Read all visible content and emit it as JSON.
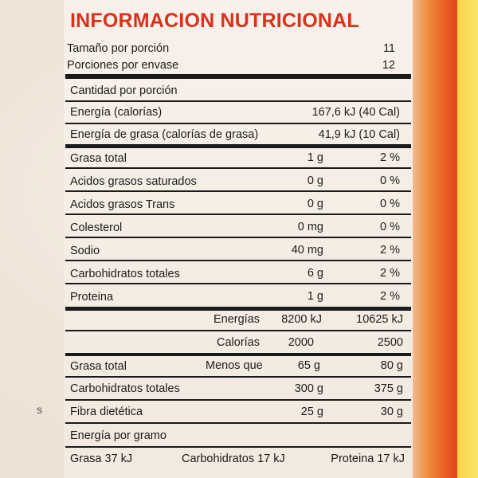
{
  "title": "INFORMACION NUTRICIONAL",
  "serving": {
    "size_label": "Tamaño  por porción",
    "size_value": "11",
    "per_pack_label": "Porciones por envase",
    "per_pack_value": "12"
  },
  "amount_label": "Cantidad por porción",
  "energy_rows": [
    {
      "label": "Energía (calorías)",
      "value": "167,6 kJ (40 Cal)"
    },
    {
      "label": "Energía de grasa (calorías de grasa)",
      "value": "41,9 kJ (10 Cal)"
    }
  ],
  "nutrients": [
    {
      "label": "Grasa total",
      "amount": "1 g",
      "pct": "2 %"
    },
    {
      "label": "Acidos grasos saturados",
      "amount": "0 g",
      "pct": "0 %"
    },
    {
      "label": "Acidos grasos Trans",
      "amount": "0 g",
      "pct": "0 %"
    },
    {
      "label": "Colesterol",
      "amount": "0 mg",
      "pct": "0 %"
    },
    {
      "label": "Sodio",
      "amount": "40 mg",
      "pct": "2 %"
    },
    {
      "label": "Carbohidratos totales",
      "amount": "6 g",
      "pct": "2 %"
    },
    {
      "label": "Proteina",
      "amount": "1 g",
      "pct": "2 %"
    }
  ],
  "reference": {
    "energias": {
      "label": "Energías",
      "v1": "8200 kJ",
      "v2": "10625 kJ"
    },
    "calorias": {
      "label": "Calorías",
      "v1": "2000",
      "v2": "2500"
    },
    "rows": [
      {
        "label": "Grasa total",
        "qualifier": "Menos que",
        "v1": "65 g",
        "v2": "80 g"
      },
      {
        "label": "Carbohidratos totales",
        "qualifier": "",
        "v1": "300 g",
        "v2": "375 g"
      },
      {
        "label": "Fibra dietética",
        "qualifier": "",
        "v1": "25 g",
        "v2": "30 g"
      }
    ]
  },
  "per_gram": {
    "label": "Energía por gramo",
    "fat": "Grasa 37 kJ",
    "carbs": "Carbohidratos 17 kJ",
    "protein": "Proteina 17 kJ"
  },
  "edge_mark": "s"
}
